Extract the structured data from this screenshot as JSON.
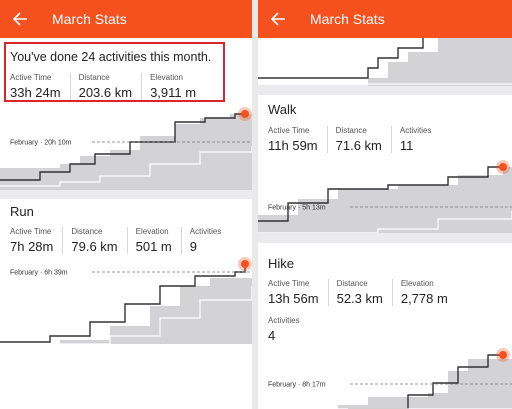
{
  "left": {
    "header": {
      "title": "March Stats"
    },
    "summary": {
      "headline": "You've done 24 activities this month.",
      "stats": [
        {
          "label": "Active Time",
          "value": "33h 24m"
        },
        {
          "label": "Distance",
          "value": "203.6 km"
        },
        {
          "label": "Elevation",
          "value": "3,911 m"
        }
      ],
      "february_label": "February · 20h 10m"
    },
    "sections": [
      {
        "title": "Run",
        "stats": [
          {
            "label": "Active Time",
            "value": "7h 28m"
          },
          {
            "label": "Distance",
            "value": "79.6 km"
          },
          {
            "label": "Elevation",
            "value": "501 m"
          },
          {
            "label": "Activities",
            "value": "9"
          }
        ],
        "february_label": "February · 6h 39m"
      }
    ]
  },
  "right": {
    "header": {
      "title": "March Stats"
    },
    "sections": [
      {
        "title": "Walk",
        "stats": [
          {
            "label": "Active Time",
            "value": "11h 59m"
          },
          {
            "label": "Distance",
            "value": "71.6 km"
          },
          {
            "label": "Activities",
            "value": "11"
          }
        ],
        "february_label": "February · 5h 13m"
      },
      {
        "title": "Hike",
        "stats": [
          {
            "label": "Active Time",
            "value": "13h 56m"
          },
          {
            "label": "Distance",
            "value": "52.3 km"
          },
          {
            "label": "Elevation",
            "value": "2,778 m"
          }
        ],
        "extra_stats": [
          {
            "label": "Activities",
            "value": "4"
          }
        ],
        "february_label": "February · 8h 17m"
      }
    ]
  }
}
